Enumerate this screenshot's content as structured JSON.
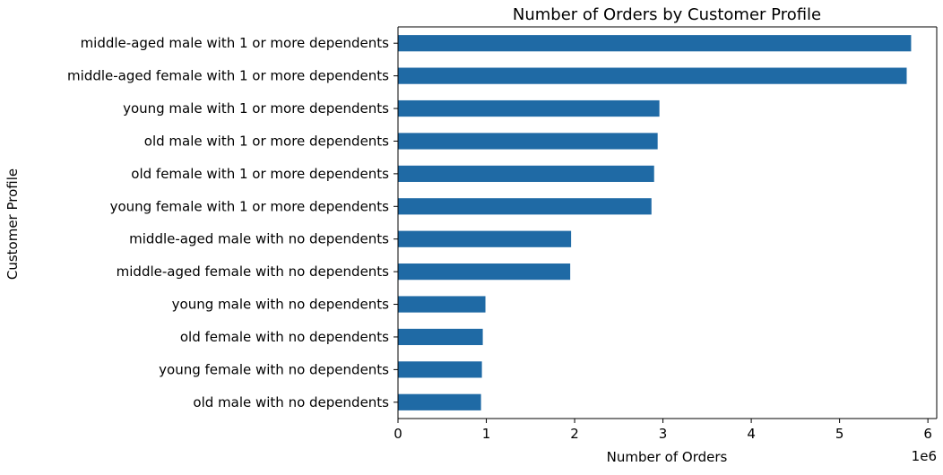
{
  "chart_data": {
    "type": "bar",
    "orientation": "horizontal",
    "title": "Number of Orders by Customer Profile",
    "xlabel": "Number of Orders",
    "ylabel": "Customer Profile",
    "x_offset_label": "1e6",
    "xlim": [
      0,
      6.1
    ],
    "xticks": [
      0,
      1,
      2,
      3,
      4,
      5,
      6
    ],
    "grid": false,
    "bar_color": "#1f6aa5",
    "categories": [
      "middle-aged male with 1 or more dependents",
      "middle-aged female with 1 or more dependents",
      "young male with 1 or more dependents",
      "old male with 1 or more dependents",
      "old female with 1 or more dependents",
      "young female with 1 or more dependents",
      "middle-aged male with no dependents",
      "middle-aged female with no dependents",
      "young male with no dependents",
      "old female with no dependents",
      "young female with no dependents",
      "old male with no dependents"
    ],
    "values": [
      5.81,
      5.76,
      2.96,
      2.94,
      2.9,
      2.87,
      1.96,
      1.95,
      0.99,
      0.96,
      0.95,
      0.94
    ]
  }
}
